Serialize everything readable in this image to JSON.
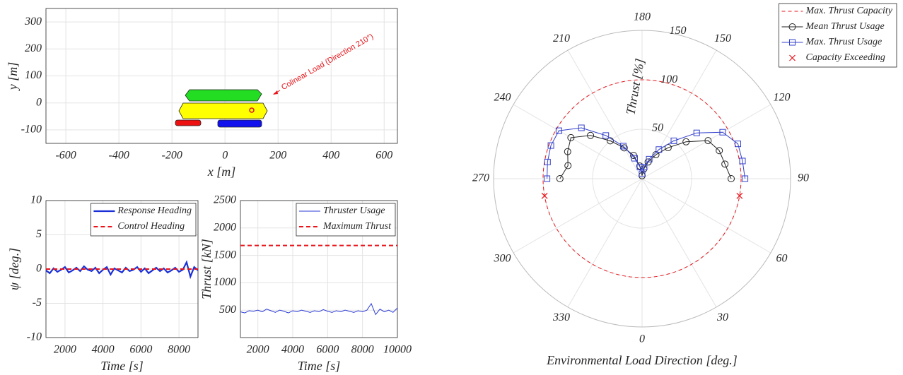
{
  "chart_data": [
    {
      "type": "layout",
      "xlabel": "x [m]",
      "ylabel": "y [m]",
      "xlim": [
        -675,
        650
      ],
      "ylim": [
        -150,
        350
      ],
      "xticks": [
        -600,
        -400,
        -200,
        0,
        200,
        400,
        600
      ],
      "yticks": [
        -100,
        0,
        100,
        200,
        300
      ],
      "grid": true,
      "annotation": "Colinear Load (Direction 210°)"
    },
    {
      "type": "line",
      "xlabel": "Time [s]",
      "ylabel": "ψ [deg.]",
      "xlim": [
        1000,
        9000
      ],
      "ylim": [
        -10,
        10
      ],
      "xticks": [
        2000,
        4000,
        6000,
        8000
      ],
      "yticks": [
        -10,
        -5,
        0,
        5,
        10
      ],
      "grid": true,
      "legend": "top-right",
      "x": [
        1000,
        1200,
        1400,
        1600,
        1800,
        2000,
        2200,
        2400,
        2600,
        2800,
        3000,
        3200,
        3400,
        3600,
        3800,
        4000,
        4200,
        4400,
        4600,
        4800,
        5000,
        5200,
        5400,
        5600,
        5800,
        6000,
        6200,
        6400,
        6600,
        6800,
        7000,
        7200,
        7400,
        7600,
        7800,
        8000,
        8200,
        8400,
        8600,
        8800,
        9000
      ],
      "series": [
        {
          "name": "Response Heading",
          "color": "#1a2fd6",
          "width": 2.2,
          "values": [
            -0.2,
            -0.6,
            0.1,
            -0.4,
            -0.1,
            0.3,
            -0.5,
            -0.2,
            0.2,
            -0.3,
            0.4,
            -0.1,
            -0.3,
            0.2,
            -0.6,
            -0.1,
            0.3,
            -0.8,
            0.1,
            -0.2,
            -0.5,
            0.2,
            -0.3,
            -0.1,
            0.3,
            -0.4,
            0.1,
            -0.6,
            -0.2,
            0.2,
            -0.3,
            0.1,
            -0.5,
            -0.2,
            0.2,
            -0.4,
            -0.1,
            1.0,
            -1.1,
            0.3,
            -0.2
          ]
        },
        {
          "name": "Control Heading",
          "color": "#e8141a",
          "width": 2,
          "dash": true,
          "x": [
            1000,
            9000
          ],
          "values": [
            0,
            0
          ]
        }
      ]
    },
    {
      "type": "line",
      "xlabel": "Time [s]",
      "ylabel": "Thrust [kN]",
      "xlim": [
        1000,
        10000
      ],
      "ylim": [
        0,
        2500
      ],
      "xticks": [
        2000,
        4000,
        6000,
        8000,
        10000
      ],
      "yticks": [
        500,
        1000,
        1500,
        2000,
        2500
      ],
      "grid": true,
      "legend": "top-right",
      "x": [
        1000,
        1250,
        1500,
        1750,
        2000,
        2250,
        2500,
        2750,
        3000,
        3250,
        3500,
        3750,
        4000,
        4250,
        4500,
        4750,
        5000,
        5250,
        5500,
        5750,
        6000,
        6250,
        6500,
        6750,
        7000,
        7250,
        7500,
        7750,
        8000,
        8250,
        8500,
        8750,
        9000,
        9250,
        9500,
        9750,
        10000
      ],
      "series": [
        {
          "name": "Thruster Usage",
          "color": "#2b3bd6",
          "width": 1,
          "values": [
            470,
            450,
            490,
            480,
            500,
            470,
            520,
            490,
            460,
            500,
            480,
            450,
            490,
            470,
            500,
            480,
            460,
            490,
            470,
            510,
            480,
            460,
            490,
            470,
            500,
            480,
            460,
            490,
            470,
            500,
            620,
            420,
            520,
            470,
            500,
            460,
            540
          ]
        },
        {
          "name": "Maximum Thrust",
          "color": "#e8141a",
          "width": 2,
          "dash": true,
          "x": [
            1000,
            10000
          ],
          "values": [
            1680,
            1680
          ]
        }
      ]
    },
    {
      "type": "polar",
      "rlabel": "Thrust [%]",
      "thetalabel": "Environmental Load Direction [deg.]",
      "rlim": [
        0,
        150
      ],
      "rticks": [
        50,
        100,
        150
      ],
      "thetaticks": [
        0,
        30,
        60,
        90,
        120,
        150,
        180,
        210,
        240,
        270,
        300,
        330
      ],
      "grid": true,
      "legend": "top-right",
      "series": [
        {
          "name": "Max. Thrust Capacity",
          "color": "#e8141a",
          "dash": true,
          "values": [
            100
          ]
        },
        {
          "name": "Mean Thrust Usage",
          "color": "#222222",
          "marker": "o",
          "theta": [
            90,
            100,
            110,
            120,
            130,
            140,
            150,
            160,
            170,
            180,
            190,
            200,
            210,
            220,
            230,
            240,
            250,
            260,
            270
          ],
          "values": [
            90,
            85,
            83,
            77,
            58,
            41,
            28,
            18,
            10,
            3,
            13,
            25,
            36,
            50,
            68,
            83,
            80,
            76,
            83
          ]
        },
        {
          "name": "Max. Thrust Usage",
          "color": "#3340cc",
          "marker": "s",
          "theta": [
            90,
            100,
            110,
            120,
            130,
            140,
            150,
            160,
            170,
            180,
            190,
            200,
            210,
            220,
            230,
            240,
            250,
            260,
            270
          ],
          "values": [
            104,
            103,
            103,
            94,
            72,
            50,
            34,
            21,
            12,
            5,
            12,
            22,
            38,
            57,
            80,
            97,
            98,
            97,
            96
          ]
        },
        {
          "name": "Capacity Exceeding",
          "color": "#e8141a",
          "marker": "x",
          "noline": true,
          "theta": [
            80,
            280
          ],
          "values": [
            100,
            100
          ]
        }
      ]
    }
  ]
}
